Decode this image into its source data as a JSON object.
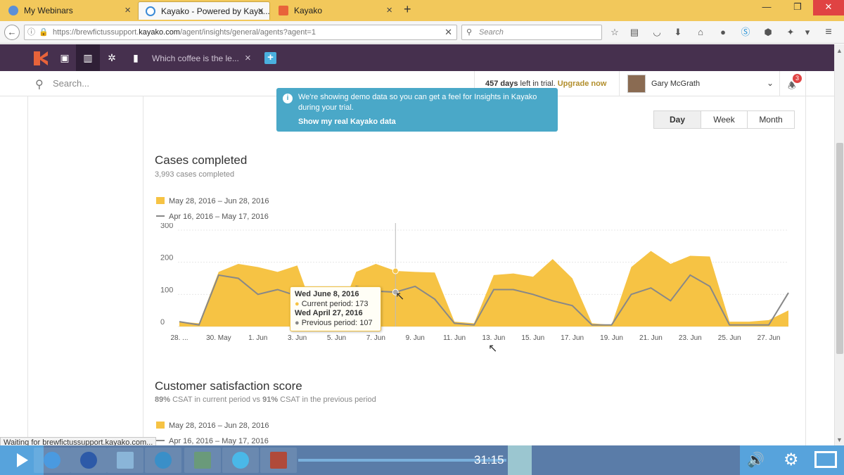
{
  "browser": {
    "tabs": [
      {
        "label": "My Webinars",
        "icon": "globe-icon"
      },
      {
        "label": "Kayako - Powered by Kaya...",
        "icon": "loading-icon"
      },
      {
        "label": "Kayako",
        "icon": "kayako-icon"
      }
    ],
    "new_tab": "+",
    "url_prefix": "https://brewfictussupport.",
    "url_domain": "kayako.com",
    "url_path": "/agent/insights/general/agents?agent=1",
    "search_placeholder": "Search",
    "colors": {
      "tabbar": "#f2c85b"
    }
  },
  "app": {
    "open_tab_title": "Which coffee is the le...",
    "search_placeholder": "Search...",
    "trial_days": "457 days",
    "trial_text": " left in trial.",
    "upgrade_label": "Upgrade now",
    "user_name": "Gary McGrath",
    "notification_count": "3",
    "colors": {
      "header": "#46304e",
      "accent": "#f6c344",
      "banner": "#4aa8c8"
    }
  },
  "banner": {
    "text": "We're showing demo data so you can get a feel for Insights in Kayako during your trial.",
    "link": "Show my real Kayako data"
  },
  "period_toggle": {
    "options": [
      "Day",
      "Week",
      "Month"
    ],
    "selected": "Day"
  },
  "cases": {
    "title": "Cases completed",
    "subtitle": "3,993 cases completed",
    "legend_current": "May 28, 2016 – Jun 28, 2016",
    "legend_previous": "Apr 16, 2016 – May 17, 2016"
  },
  "tooltip": {
    "date1": "Wed June 8, 2016",
    "line1": "Current period: 173",
    "date2": "Wed April 27, 2016",
    "line2": "Previous period: 107"
  },
  "csat": {
    "title": "Customer satisfaction score",
    "subtitle_current": "89%",
    "subtitle_mid": " CSAT in current period vs ",
    "subtitle_previous": "91%",
    "subtitle_end": " CSAT in the previous period",
    "legend_current": "May 28, 2016 – Jun 28, 2016",
    "legend_previous": "Apr 16, 2016 – May 17, 2016"
  },
  "status_text": "Waiting for brewfictussupport.kayako.com...",
  "video": {
    "time": "31:15"
  },
  "chart_data": {
    "type": "area",
    "title": "Cases completed",
    "x": [
      "28. May",
      "29. May",
      "30. May",
      "31. May",
      "1. Jun",
      "2. Jun",
      "3. Jun",
      "4. Jun",
      "5. Jun",
      "6. Jun",
      "7. Jun",
      "8. Jun",
      "9. Jun",
      "10. Jun",
      "11. Jun",
      "12. Jun",
      "13. Jun",
      "14. Jun",
      "15. Jun",
      "16. Jun",
      "17. Jun",
      "18. Jun",
      "19. Jun",
      "20. Jun",
      "21. Jun",
      "22. Jun",
      "23. Jun",
      "24. Jun",
      "25. Jun",
      "26. Jun",
      "27. Jun",
      "28. Jun"
    ],
    "xticks": [
      "28. ...",
      "30. May",
      "1. Jun",
      "3. Jun",
      "5. Jun",
      "7. Jun",
      "9. Jun",
      "11. Jun",
      "13. Jun",
      "15. Jun",
      "17. Jun",
      "19. Jun",
      "21. Jun",
      "23. Jun",
      "25. Jun",
      "27. Jun"
    ],
    "series": [
      {
        "name": "May 28, 2016 – Jun 28, 2016",
        "color": "#f6c344",
        "values": [
          15,
          10,
          170,
          195,
          185,
          170,
          190,
          20,
          15,
          170,
          195,
          173,
          170,
          168,
          15,
          10,
          160,
          165,
          155,
          210,
          150,
          10,
          5,
          185,
          235,
          195,
          220,
          218,
          15,
          15,
          20,
          50
        ]
      },
      {
        "name": "Apr 16, 2016 – May 17, 2016",
        "color": "#888888",
        "values": [
          15,
          5,
          160,
          150,
          100,
          115,
          95,
          20,
          10,
          125,
          110,
          107,
          125,
          85,
          10,
          5,
          115,
          115,
          100,
          80,
          65,
          5,
          5,
          100,
          120,
          80,
          160,
          125,
          5,
          5,
          5,
          105
        ]
      }
    ],
    "ylim": [
      0,
      300
    ],
    "yticks": [
      0,
      100,
      200,
      300
    ]
  }
}
